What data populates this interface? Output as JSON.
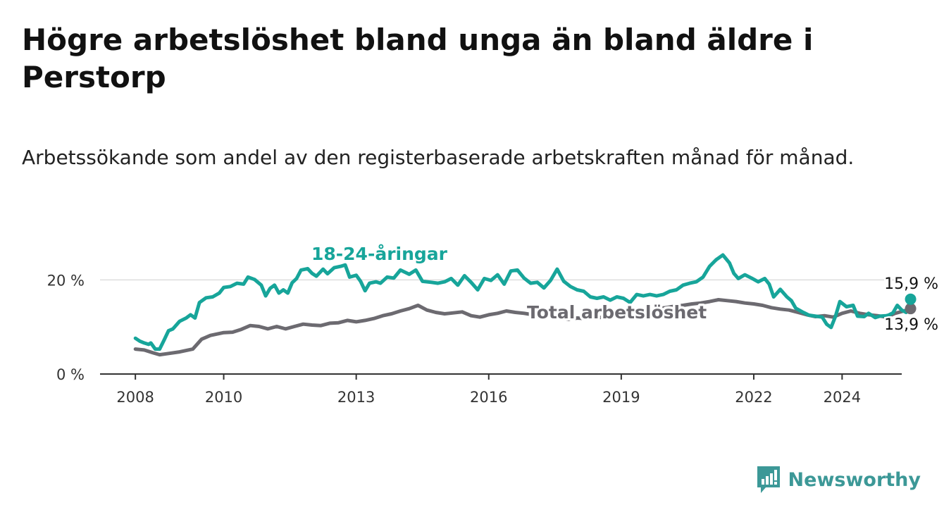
{
  "title": "Högre arbetslöshet bland unga än bland äldre i Perstorp",
  "subtitle": "Arbetssökande som andel av den registerbaserade arbetskraften månad för månad.",
  "brand": {
    "name": "Newsworthy",
    "icon": "newsworthy-logo-icon"
  },
  "colors": {
    "youth": "#17a59a",
    "total": "#6c6a70",
    "grid": "#dddddd",
    "axis": "#333333",
    "brand": "#3c9897"
  },
  "chart_data": {
    "type": "line",
    "x_ticks": [
      "2008",
      "2010",
      "2013",
      "2016",
      "2019",
      "2022",
      "2024"
    ],
    "y_ticks": [
      "0 %",
      "20 %"
    ],
    "ylim": [
      0,
      28
    ],
    "x_range": [
      2007.2,
      2025.35
    ],
    "grid": "horizontal",
    "series": [
      {
        "name": "18-24-åringar",
        "end_label": "15,9 %",
        "points": [
          [
            2008.0,
            7.6
          ],
          [
            2008.1,
            7.0
          ],
          [
            2008.2,
            6.6
          ],
          [
            2008.3,
            6.3
          ],
          [
            2008.35,
            6.6
          ],
          [
            2008.45,
            5.3
          ],
          [
            2008.55,
            5.3
          ],
          [
            2008.65,
            7.2
          ],
          [
            2008.75,
            9.2
          ],
          [
            2008.85,
            9.6
          ],
          [
            2009.0,
            11.2
          ],
          [
            2009.15,
            11.9
          ],
          [
            2009.25,
            12.6
          ],
          [
            2009.35,
            11.9
          ],
          [
            2009.45,
            15.2
          ],
          [
            2009.6,
            16.2
          ],
          [
            2009.75,
            16.4
          ],
          [
            2009.9,
            17.2
          ],
          [
            2010.0,
            18.4
          ],
          [
            2010.15,
            18.6
          ],
          [
            2010.3,
            19.3
          ],
          [
            2010.45,
            19.1
          ],
          [
            2010.55,
            20.6
          ],
          [
            2010.7,
            20.1
          ],
          [
            2010.85,
            18.9
          ],
          [
            2010.95,
            16.6
          ],
          [
            2011.05,
            18.2
          ],
          [
            2011.15,
            18.9
          ],
          [
            2011.25,
            17.2
          ],
          [
            2011.35,
            17.9
          ],
          [
            2011.45,
            17.2
          ],
          [
            2011.55,
            19.4
          ],
          [
            2011.65,
            20.3
          ],
          [
            2011.75,
            22.1
          ],
          [
            2011.9,
            22.4
          ],
          [
            2012.0,
            21.4
          ],
          [
            2012.1,
            20.8
          ],
          [
            2012.25,
            22.3
          ],
          [
            2012.35,
            21.3
          ],
          [
            2012.5,
            22.6
          ],
          [
            2012.65,
            22.9
          ],
          [
            2012.75,
            23.2
          ],
          [
            2012.85,
            20.6
          ],
          [
            2013.0,
            21.0
          ],
          [
            2013.1,
            19.7
          ],
          [
            2013.2,
            17.7
          ],
          [
            2013.3,
            19.3
          ],
          [
            2013.45,
            19.6
          ],
          [
            2013.55,
            19.3
          ],
          [
            2013.7,
            20.6
          ],
          [
            2013.85,
            20.4
          ],
          [
            2014.0,
            22.1
          ],
          [
            2014.2,
            21.2
          ],
          [
            2014.35,
            22.1
          ],
          [
            2014.5,
            19.7
          ],
          [
            2014.7,
            19.5
          ],
          [
            2014.85,
            19.3
          ],
          [
            2015.0,
            19.6
          ],
          [
            2015.15,
            20.3
          ],
          [
            2015.3,
            18.9
          ],
          [
            2015.45,
            20.9
          ],
          [
            2015.6,
            19.5
          ],
          [
            2015.75,
            17.9
          ],
          [
            2015.9,
            20.3
          ],
          [
            2016.05,
            19.9
          ],
          [
            2016.2,
            21.1
          ],
          [
            2016.35,
            19.1
          ],
          [
            2016.5,
            21.9
          ],
          [
            2016.65,
            22.1
          ],
          [
            2016.8,
            20.4
          ],
          [
            2016.95,
            19.3
          ],
          [
            2017.1,
            19.5
          ],
          [
            2017.25,
            18.3
          ],
          [
            2017.4,
            19.9
          ],
          [
            2017.55,
            22.3
          ],
          [
            2017.7,
            19.7
          ],
          [
            2017.85,
            18.6
          ],
          [
            2018.0,
            17.9
          ],
          [
            2018.15,
            17.6
          ],
          [
            2018.3,
            16.4
          ],
          [
            2018.45,
            16.1
          ],
          [
            2018.6,
            16.4
          ],
          [
            2018.75,
            15.7
          ],
          [
            2018.9,
            16.4
          ],
          [
            2019.05,
            16.1
          ],
          [
            2019.2,
            15.2
          ],
          [
            2019.35,
            16.9
          ],
          [
            2019.5,
            16.6
          ],
          [
            2019.65,
            16.9
          ],
          [
            2019.8,
            16.6
          ],
          [
            2019.95,
            16.9
          ],
          [
            2020.1,
            17.6
          ],
          [
            2020.25,
            17.9
          ],
          [
            2020.4,
            18.9
          ],
          [
            2020.55,
            19.3
          ],
          [
            2020.7,
            19.6
          ],
          [
            2020.85,
            20.6
          ],
          [
            2021.0,
            22.9
          ],
          [
            2021.15,
            24.3
          ],
          [
            2021.3,
            25.3
          ],
          [
            2021.45,
            23.6
          ],
          [
            2021.55,
            21.4
          ],
          [
            2021.65,
            20.3
          ],
          [
            2021.8,
            21.1
          ],
          [
            2021.95,
            20.4
          ],
          [
            2022.1,
            19.6
          ],
          [
            2022.25,
            20.3
          ],
          [
            2022.35,
            19.1
          ],
          [
            2022.45,
            16.4
          ],
          [
            2022.6,
            18.0
          ],
          [
            2022.75,
            16.4
          ],
          [
            2022.85,
            15.6
          ],
          [
            2022.95,
            14.0
          ],
          [
            2023.1,
            13.2
          ],
          [
            2023.25,
            12.5
          ],
          [
            2023.4,
            12.3
          ],
          [
            2023.55,
            12.1
          ],
          [
            2023.65,
            10.6
          ],
          [
            2023.75,
            9.9
          ],
          [
            2023.85,
            12.3
          ],
          [
            2023.95,
            15.4
          ],
          [
            2024.1,
            14.3
          ],
          [
            2024.25,
            14.6
          ],
          [
            2024.35,
            12.3
          ],
          [
            2024.5,
            12.2
          ],
          [
            2024.6,
            12.9
          ],
          [
            2024.75,
            12.0
          ],
          [
            2024.85,
            12.3
          ],
          [
            2025.0,
            12.4
          ],
          [
            2025.05,
            12.5
          ],
          [
            2025.15,
            13.0
          ],
          [
            2025.25,
            14.6
          ],
          [
            2025.35,
            13.6
          ],
          [
            2025.45,
            13.1
          ],
          [
            2025.55,
            15.9
          ]
        ]
      },
      {
        "name": "Total arbetslöshet",
        "end_label": "13,9 %",
        "points": [
          [
            2008.0,
            5.3
          ],
          [
            2008.2,
            5.1
          ],
          [
            2008.4,
            4.5
          ],
          [
            2008.55,
            4.1
          ],
          [
            2008.7,
            4.3
          ],
          [
            2009.0,
            4.7
          ],
          [
            2009.3,
            5.3
          ],
          [
            2009.5,
            7.4
          ],
          [
            2009.7,
            8.2
          ],
          [
            2010.0,
            8.8
          ],
          [
            2010.2,
            8.9
          ],
          [
            2010.4,
            9.5
          ],
          [
            2010.6,
            10.3
          ],
          [
            2010.8,
            10.1
          ],
          [
            2011.0,
            9.6
          ],
          [
            2011.2,
            10.1
          ],
          [
            2011.4,
            9.6
          ],
          [
            2011.6,
            10.1
          ],
          [
            2011.8,
            10.6
          ],
          [
            2012.0,
            10.4
          ],
          [
            2012.2,
            10.3
          ],
          [
            2012.4,
            10.8
          ],
          [
            2012.6,
            10.9
          ],
          [
            2012.8,
            11.4
          ],
          [
            2013.0,
            11.1
          ],
          [
            2013.2,
            11.4
          ],
          [
            2013.4,
            11.8
          ],
          [
            2013.6,
            12.4
          ],
          [
            2013.8,
            12.8
          ],
          [
            2014.0,
            13.4
          ],
          [
            2014.2,
            13.9
          ],
          [
            2014.4,
            14.6
          ],
          [
            2014.6,
            13.6
          ],
          [
            2014.8,
            13.1
          ],
          [
            2015.0,
            12.8
          ],
          [
            2015.2,
            13.0
          ],
          [
            2015.4,
            13.2
          ],
          [
            2015.6,
            12.4
          ],
          [
            2015.8,
            12.1
          ],
          [
            2016.0,
            12.6
          ],
          [
            2016.2,
            12.9
          ],
          [
            2016.4,
            13.4
          ],
          [
            2016.6,
            13.1
          ],
          [
            2016.8,
            12.9
          ],
          [
            2017.0,
            12.6
          ],
          [
            2017.2,
            12.4
          ],
          [
            2017.4,
            12.2
          ],
          [
            2017.6,
            11.9
          ],
          [
            2017.8,
            11.6
          ],
          [
            2018.0,
            11.9
          ],
          [
            2018.2,
            11.8
          ],
          [
            2018.4,
            11.9
          ],
          [
            2018.6,
            12.1
          ],
          [
            2018.8,
            12.5
          ],
          [
            2019.0,
            12.9
          ],
          [
            2019.2,
            13.1
          ],
          [
            2019.4,
            13.4
          ],
          [
            2019.6,
            13.6
          ],
          [
            2019.8,
            13.9
          ],
          [
            2020.0,
            14.1
          ],
          [
            2020.2,
            14.4
          ],
          [
            2020.4,
            14.6
          ],
          [
            2020.6,
            14.9
          ],
          [
            2020.8,
            15.1
          ],
          [
            2021.0,
            15.4
          ],
          [
            2021.2,
            15.8
          ],
          [
            2021.4,
            15.6
          ],
          [
            2021.6,
            15.4
          ],
          [
            2021.8,
            15.1
          ],
          [
            2022.0,
            14.9
          ],
          [
            2022.2,
            14.6
          ],
          [
            2022.4,
            14.1
          ],
          [
            2022.6,
            13.8
          ],
          [
            2022.8,
            13.6
          ],
          [
            2023.0,
            13.1
          ],
          [
            2023.2,
            12.6
          ],
          [
            2023.4,
            12.2
          ],
          [
            2023.6,
            12.4
          ],
          [
            2023.8,
            12.1
          ],
          [
            2024.0,
            12.9
          ],
          [
            2024.2,
            13.4
          ],
          [
            2024.4,
            12.9
          ],
          [
            2024.6,
            12.6
          ],
          [
            2024.8,
            12.4
          ],
          [
            2025.0,
            12.1
          ],
          [
            2025.2,
            12.9
          ],
          [
            2025.4,
            13.4
          ],
          [
            2025.55,
            13.9
          ]
        ]
      }
    ]
  }
}
